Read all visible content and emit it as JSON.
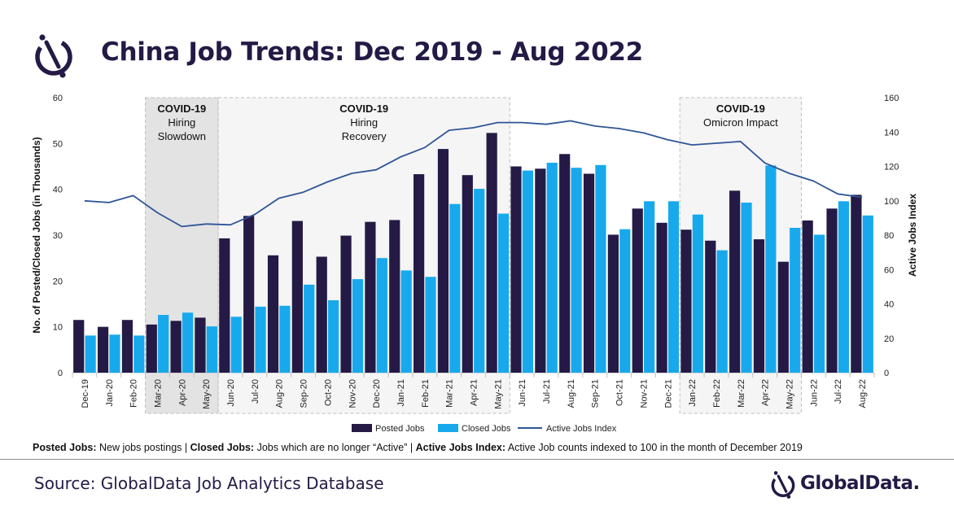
{
  "page": {
    "title": "China Job Trends: Dec 2019 - Aug 2022",
    "note": {
      "posted_term": "Posted Jobs:",
      "posted_desc": " New jobs postings | ",
      "closed_term": "Closed Jobs:",
      "closed_desc": " Jobs which are no longer “Active” | ",
      "index_term": "Active Jobs Index:",
      "index_desc": " Active Job counts indexed to 100  in the month of December 2019"
    },
    "source": "Source: GlobalData Job Analytics Database",
    "brand": "GlobalData."
  },
  "chart_data": {
    "type": "bar",
    "categories": [
      "Dec-19",
      "Jan-20",
      "Feb-20",
      "Mar-20",
      "Apr-20",
      "May-20",
      "Jun-20",
      "Jul-20",
      "Aug-20",
      "Sep-20",
      "Oct-20",
      "Nov-20",
      "Dec-20",
      "Jan-21",
      "Feb-21",
      "Mar-21",
      "Apr-21",
      "May-21",
      "Jun-21",
      "Jul-21",
      "Aug-21",
      "Sep-21",
      "Oct-21",
      "Nov-21",
      "Dec-21",
      "Jan-22",
      "Feb-22",
      "Mar-22",
      "Apr-22",
      "May-22",
      "Jun-22",
      "Jul-22",
      "Aug-22"
    ],
    "series": [
      {
        "name": "Posted Jobs",
        "type": "bar",
        "axis": "left",
        "color": "#241a45",
        "values": [
          11.5,
          10,
          11.5,
          10.5,
          11.3,
          12,
          29.3,
          34.2,
          25.6,
          33.1,
          25.3,
          29.9,
          32.9,
          33.3,
          43.3,
          48.8,
          43.1,
          52.3,
          45,
          44.5,
          47.7,
          43.4,
          30.1,
          35.8,
          32.7,
          31.2,
          28.8,
          39.7,
          29.1,
          24.2,
          33.2,
          35.8,
          38.8
        ]
      },
      {
        "name": "Closed Jobs",
        "type": "bar",
        "axis": "left",
        "color": "#18a9ec",
        "values": [
          8.1,
          8.3,
          8.1,
          12.6,
          13.1,
          10.1,
          12.2,
          14.4,
          14.6,
          19.2,
          15.8,
          20.4,
          25,
          22.3,
          20.9,
          36.8,
          40.1,
          34.7,
          44.1,
          45.8,
          44.7,
          45.3,
          31.3,
          37.4,
          37.4,
          34.5,
          26.7,
          37.1,
          45.2,
          31.6,
          30.1,
          37.4,
          34.3
        ]
      },
      {
        "name": "Active Jobs Index",
        "type": "line",
        "axis": "right",
        "color": "#2f5597",
        "values": [
          100,
          99,
          103,
          93,
          85,
          86.5,
          86,
          92,
          101.5,
          105,
          111,
          116,
          118,
          125.5,
          131,
          141,
          142.5,
          145.5,
          145.5,
          144.5,
          146.5,
          143.5,
          142,
          139.5,
          135.5,
          132.5,
          133.5,
          134.5,
          122,
          116,
          111.5,
          104,
          102
        ]
      }
    ],
    "ylabel": "No. of Posted/Closed Jobs (in Thousands)",
    "y2label": "Active Jobs Index",
    "ylim": [
      0,
      60
    ],
    "y2lim": [
      0,
      160
    ],
    "yticks": [
      0,
      10,
      20,
      30,
      40,
      50,
      60
    ],
    "y2ticks": [
      0,
      20,
      40,
      60,
      80,
      100,
      120,
      140,
      160
    ],
    "annotations": [
      {
        "lines": [
          "COVID-19",
          "Hiring",
          "Slowdown"
        ],
        "from": "Mar-20",
        "to": "May-20",
        "fill": "#e3e3e4"
      },
      {
        "lines": [
          "COVID-19",
          "Hiring",
          "Recovery"
        ],
        "from": "Jun-20",
        "to": "May-21",
        "fill": "#f5f5f5"
      },
      {
        "lines": [
          "COVID-19",
          "Omicron Impact"
        ],
        "from": "Jan-22",
        "to": "May-22",
        "fill": "#f5f5f5"
      }
    ],
    "legend_position": "bottom"
  }
}
